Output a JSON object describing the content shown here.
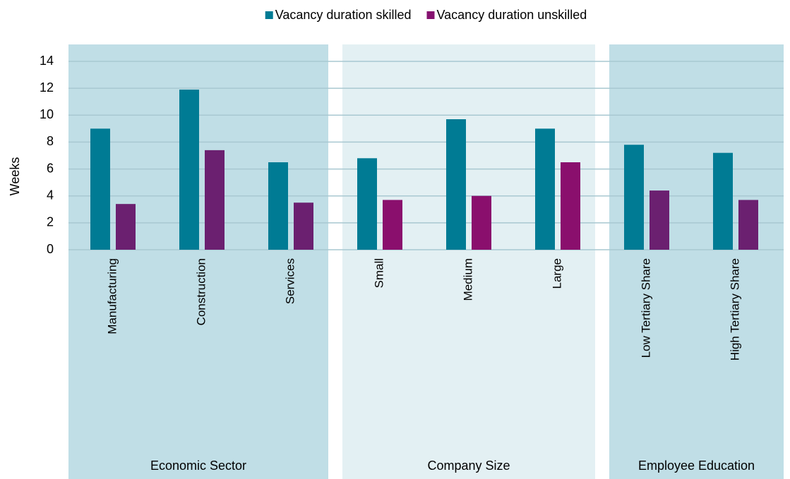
{
  "chart_data": {
    "type": "bar",
    "y_label": "Weeks",
    "groups": [
      {
        "label": "Economic Sector",
        "color": "#c0dee6",
        "categories": [
          "Manufacturing",
          "Construction",
          "Services"
        ]
      },
      {
        "label": "Company Size",
        "color": "#e3f0f3",
        "categories": [
          "Small",
          "Medium",
          "Large"
        ]
      },
      {
        "label": "Employee Education",
        "color": "#c0dee6",
        "categories": [
          "Low Tertiary Share",
          "High Tertiary Share"
        ]
      }
    ],
    "series": [
      {
        "name": "Vacancy duration skilled",
        "color": "#007b94",
        "values": [
          9.0,
          11.9,
          6.5,
          6.8,
          9.7,
          9.0,
          7.8,
          7.2
        ]
      },
      {
        "name": "Vacancy duration unskilled",
        "color": "#861270",
        "colors": [
          "#6b2070",
          "#6b2070",
          "#6b2070",
          "#8a0f6d",
          "#8a0f6d",
          "#8a0f6d",
          "#6b2070",
          "#6b2070"
        ],
        "values": [
          3.4,
          7.4,
          3.5,
          3.7,
          4.0,
          6.5,
          4.4,
          3.7
        ]
      }
    ],
    "ylim": [
      0,
      14
    ],
    "yticks": [
      0,
      2,
      4,
      6,
      8,
      10,
      12,
      14
    ],
    "grid": true,
    "legend": "top"
  }
}
